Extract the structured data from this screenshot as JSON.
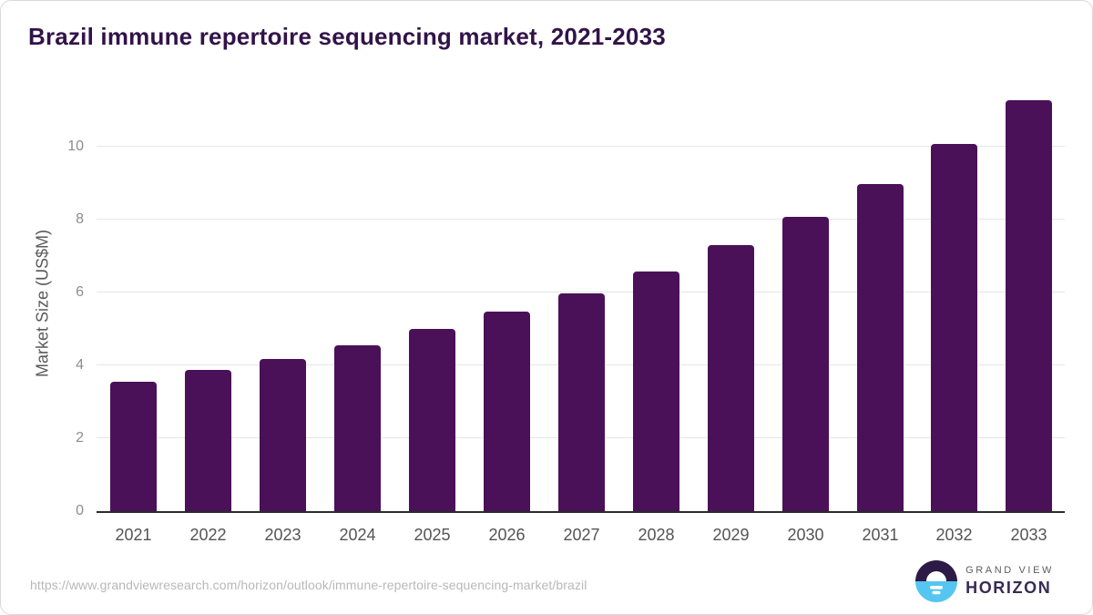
{
  "header": {
    "title": "Brazil immune repertoire sequencing market, 2021-2033"
  },
  "chart_data": {
    "type": "bar",
    "title": "Brazil immune repertoire sequencing market, 2021-2033",
    "categories": [
      "2021",
      "2022",
      "2023",
      "2024",
      "2025",
      "2026",
      "2027",
      "2028",
      "2029",
      "2030",
      "2031",
      "2032",
      "2033"
    ],
    "values": [
      3.55,
      3.88,
      4.18,
      4.55,
      5.0,
      5.47,
      5.97,
      6.57,
      7.3,
      8.07,
      8.97,
      10.07,
      11.28
    ],
    "xlabel": "",
    "ylabel": "Market Size (US$M)",
    "yticks": [
      0,
      2,
      4,
      6,
      8,
      10
    ],
    "ylim": [
      0,
      11.55
    ],
    "grid": "horizontal-only",
    "legend": "none",
    "bar_color": "#4a1158"
  },
  "footer": {
    "source_url": "https://www.grandviewresearch.com/horizon/outlook/immune-repertoire-sequencing-market/brazil",
    "logo": {
      "line1": "GRAND VIEW",
      "line2": "HORIZON"
    }
  },
  "colors": {
    "title_text": "#321349",
    "bar": "#4a1158",
    "axis_line": "#2b2b2b",
    "gridline": "#e5e5e5",
    "tick_text": "#8c8c8c",
    "x_label_text": "#545454",
    "url_text": "#b8b8b8",
    "logo_dark_purple": "#2e1a47",
    "logo_light_blue": "#54c6f0",
    "logo_text_gray": "#5c5c66",
    "logo_text_purple": "#392a55"
  }
}
